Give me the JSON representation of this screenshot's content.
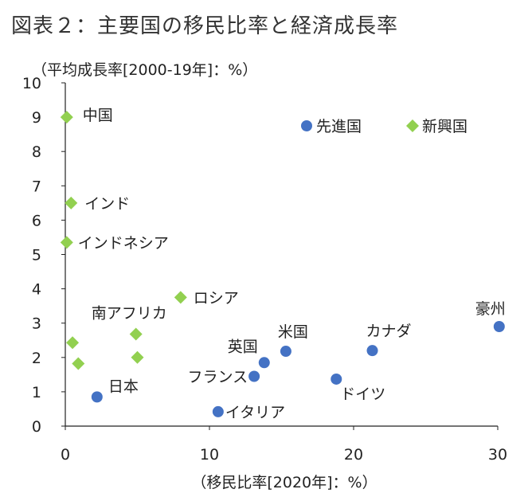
{
  "figure_title": "図表２：主要国の移民比率と経済成長率",
  "colors": {
    "advanced": "#4472C4",
    "emerging": "#92D050",
    "axis": "#222222",
    "text": "#222222"
  },
  "chart_data": {
    "type": "scatter",
    "title": "",
    "ylabel": "（平均成長率[2000-19年]：%）",
    "xlabel": "（移民比率[2020年]：%）",
    "xlim": [
      0,
      30
    ],
    "ylim": [
      0,
      10
    ],
    "x_ticks": [
      0,
      10,
      20,
      30
    ],
    "y_ticks": [
      0,
      1,
      2,
      3,
      4,
      5,
      6,
      7,
      8,
      9,
      10
    ],
    "grid": false,
    "legend_position": "top-right",
    "series": [
      {
        "name": "先進国",
        "marker": "circle",
        "points": [
          {
            "label": "日本",
            "x": 2.2,
            "y": 0.85
          },
          {
            "label": "イタリア",
            "x": 10.6,
            "y": 0.42
          },
          {
            "label": "フランス",
            "x": 13.1,
            "y": 1.45
          },
          {
            "label": "英国",
            "x": 13.8,
            "y": 1.85
          },
          {
            "label": "米国",
            "x": 15.3,
            "y": 2.18
          },
          {
            "label": "ドイツ",
            "x": 18.8,
            "y": 1.37
          },
          {
            "label": "カナダ",
            "x": 21.3,
            "y": 2.2
          },
          {
            "label": "豪州",
            "x": 30.1,
            "y": 2.9
          }
        ]
      },
      {
        "name": "新興国",
        "marker": "diamond",
        "points": [
          {
            "label": "中国",
            "x": 0.1,
            "y": 9.0
          },
          {
            "label": "インド",
            "x": 0.4,
            "y": 6.5
          },
          {
            "label": "インドネシア",
            "x": 0.1,
            "y": 5.35
          },
          {
            "label": "ロシア",
            "x": 8.0,
            "y": 3.75
          },
          {
            "label": "南アフリカ",
            "x": 4.9,
            "y": 2.68
          },
          {
            "label": "",
            "x": 0.5,
            "y": 2.43
          },
          {
            "label": "",
            "x": 0.9,
            "y": 1.82
          },
          {
            "label": "",
            "x": 5.0,
            "y": 2.0
          }
        ]
      }
    ]
  }
}
